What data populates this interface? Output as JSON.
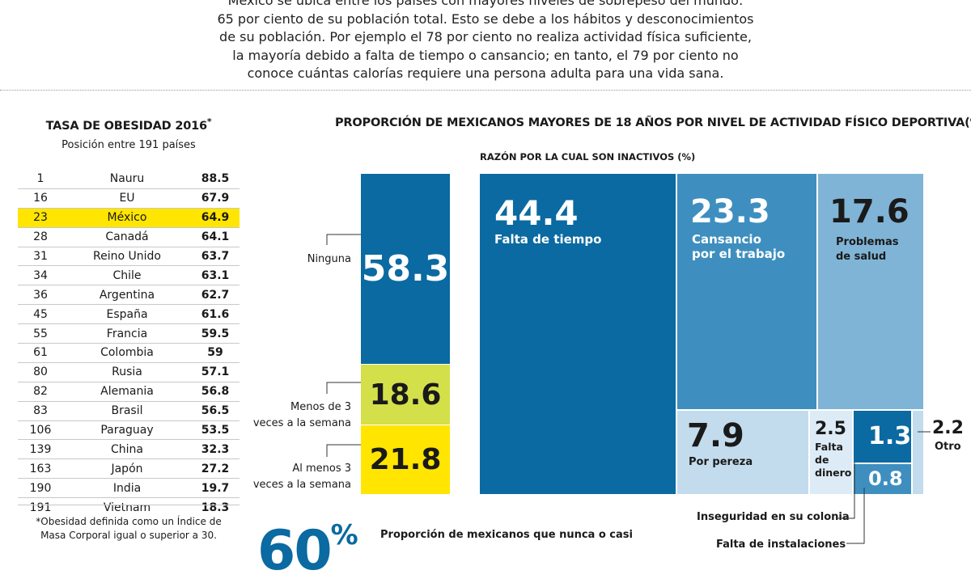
{
  "intro": {
    "lines": [
      "México se ubica entre los países con mayores niveles de sobrepeso del mundo:",
      "65 por ciento de su población total. Esto se debe a los hábitos y desconocimientos",
      "de su población. Por ejemplo el 78 por ciento no realiza actividad física suficiente,",
      "la mayoría debido a falta de tiempo o cansancio; en tanto, el 79 por ciento no",
      "conoce cuántas calorías requiere una persona adulta para una vida sana."
    ]
  },
  "ranking": {
    "title": "TASA DE OBESIDAD 2016",
    "title_mark": "*",
    "subtitle": "Posición entre 191 países",
    "rows": [
      {
        "pos": "1",
        "country": "Nauru",
        "value": "88.5"
      },
      {
        "pos": "16",
        "country": "EU",
        "value": "67.9"
      },
      {
        "pos": "23",
        "country": "México",
        "value": "64.9"
      },
      {
        "pos": "28",
        "country": "Canadá",
        "value": "64.1"
      },
      {
        "pos": "31",
        "country": "Reino Unido",
        "value": "63.7"
      },
      {
        "pos": "34",
        "country": "Chile",
        "value": "63.1"
      },
      {
        "pos": "36",
        "country": "Argentina",
        "value": "62.7"
      },
      {
        "pos": "45",
        "country": "España",
        "value": "61.6"
      },
      {
        "pos": "55",
        "country": "Francia",
        "value": "59.5"
      },
      {
        "pos": "61",
        "country": "Colombia",
        "value": "59"
      },
      {
        "pos": "80",
        "country": "Rusia",
        "value": "57.1"
      },
      {
        "pos": "82",
        "country": "Alemania",
        "value": "56.8"
      },
      {
        "pos": "83",
        "country": "Brasil",
        "value": "56.5"
      },
      {
        "pos": "106",
        "country": "Paraguay",
        "value": "53.5"
      },
      {
        "pos": "139",
        "country": "China",
        "value": "32.3"
      },
      {
        "pos": "163",
        "country": "Japón",
        "value": "27.2"
      },
      {
        "pos": "190",
        "country": "India",
        "value": "19.7"
      },
      {
        "pos": "191",
        "country": "Vietnam",
        "value": "18.3"
      }
    ],
    "highlight_index": 2,
    "note_line1": "*Obesidad definida como un Índice de",
    "note_line2": "Masa Corporal igual o superior a 30."
  },
  "chart_data": {
    "activity": {
      "type": "bar",
      "title": "PROPORCIÓN DE MEXICANOS MAYORES DE 18 AÑOS POR NIVEL DE ACTIVIDAD FÍSICO DEPORTIVA(%)",
      "segments": [
        {
          "label": "Ninguna",
          "value": 58.3,
          "display": "58.3",
          "color": "#0a6aa1",
          "text_color": "#ffffff"
        },
        {
          "label": "Menos de 3 veces a la semana",
          "label_line1": "Menos de 3",
          "label_line2": "veces a la semana",
          "value": 18.6,
          "display": "18.6",
          "color": "#d4e04a",
          "text_color": "#1a1a1a"
        },
        {
          "label": "Al menos 3 veces a la semana",
          "label_line1": "Al menos 3",
          "label_line2": "veces a la semana",
          "value": 21.8,
          "display": "21.8",
          "color": "#ffe500",
          "text_color": "#1a1a1a"
        }
      ]
    },
    "reasons": {
      "type": "treemap",
      "title": "RAZÓN POR LA CUAL SON INACTIVOS (%)",
      "items": [
        {
          "display": "44.4",
          "label_line1": "Falta de tiempo",
          "label_line2": "",
          "value": 44.4,
          "color": "#0a6aa1"
        },
        {
          "display": "23.3",
          "label_line1": "Cansancio",
          "label_line2": "por el trabajo",
          "value": 23.3,
          "color": "#3e8fbf"
        },
        {
          "display": "17.6",
          "label_line1": "Problemas",
          "label_line2": "de salud",
          "value": 17.6,
          "color": "#7fb4d6"
        },
        {
          "display": "7.9",
          "label_line1": "Por pereza",
          "label_line2": "",
          "value": 7.9,
          "color": "#c2dced"
        },
        {
          "display": "2.5",
          "label_line1": "Falta",
          "label_line2": "de",
          "label_line3": "dinero",
          "value": 2.5,
          "color": "#dcebf5"
        },
        {
          "display": "1.3",
          "label": "Inseguridad en su colonia",
          "value": 1.3,
          "color": "#0a6aa1"
        },
        {
          "display": "0.8",
          "label": "Falta de instalaciones",
          "value": 0.8,
          "color": "#3e8fbf"
        },
        {
          "display": "2.2",
          "label": "Otro",
          "value": 2.2,
          "color": "#c2dced"
        }
      ]
    }
  },
  "bottom": {
    "big_value": "60",
    "big_unit": "%",
    "text": "Proporción de mexicanos que nunca o casi"
  }
}
